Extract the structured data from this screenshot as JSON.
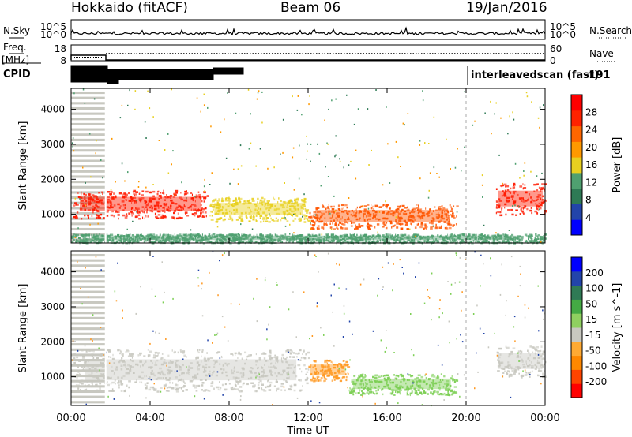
{
  "header": {
    "station": "Hokkaido (fitACF)",
    "beam": "Beam 06",
    "date": "19/Jan/2016"
  },
  "nsky_panel": {
    "left_label": "N.Sky",
    "left_ticks": [
      "10^5",
      "10^0"
    ],
    "right_label": "N.Search",
    "right_ticks": [
      "10^5",
      "10^0"
    ]
  },
  "freq_panel": {
    "left_label_1": "Freq.",
    "left_label_2": "[MHz]",
    "left_ticks": [
      "18",
      "8"
    ],
    "right_label": "Nave",
    "right_ticks": [
      "60",
      "0"
    ]
  },
  "cpid_panel": {
    "label": "CPID",
    "scan_mode": "interleavedscan (fast)",
    "cpid_value": "-191"
  },
  "chart_data": [
    {
      "type": "heatmap",
      "title": "",
      "quantity": "Power",
      "ylabel": "Slant Range [km]",
      "xlabel": "Time UT",
      "x_ticks": [
        "00:00",
        "04:00",
        "08:00",
        "12:00",
        "16:00",
        "20:00",
        "00:00"
      ],
      "x_range_hours": [
        0,
        24
      ],
      "y_ticks": [
        1000,
        2000,
        3000,
        4000
      ],
      "y_range_km": [
        180,
        4600
      ],
      "colorbar_label": "Power [dB]",
      "colorbar_ticks": [
        "28",
        "24",
        "20",
        "16",
        "12",
        "8",
        "4"
      ],
      "colorbar_range": [
        0,
        32
      ],
      "colors": [
        "#0000ff",
        "#2244aa",
        "#2e7a55",
        "#4fa070",
        "#e8d020",
        "#ff9900",
        "#ff6600",
        "#ff2200",
        "#ff0000"
      ],
      "features": [
        {
          "desc": "strong echo band",
          "t_start": 0.1,
          "t_end": 6.9,
          "r_low": 900,
          "r_high": 1700,
          "level": "28"
        },
        {
          "desc": "mid-latitude band",
          "t_start": 7.0,
          "t_end": 12.0,
          "r_low": 800,
          "r_high": 1500,
          "level": "16"
        },
        {
          "desc": "descending band",
          "t_start": 12.0,
          "t_end": 19.5,
          "r_low": 600,
          "r_high": 1300,
          "level": "24"
        },
        {
          "desc": "evening band",
          "t_start": 21.5,
          "t_end": 24.0,
          "r_low": 1000,
          "r_high": 1900,
          "level": "28"
        },
        {
          "desc": "near-range scatter",
          "t_start": 0.0,
          "t_end": 24.0,
          "r_low": 200,
          "r_high": 450,
          "level": "12"
        }
      ]
    },
    {
      "type": "heatmap",
      "title": "",
      "quantity": "Velocity",
      "ylabel": "Slant Range [km]",
      "xlabel": "Time UT",
      "x_ticks": [
        "00:00",
        "04:00",
        "08:00",
        "12:00",
        "16:00",
        "20:00",
        "00:00"
      ],
      "x_range_hours": [
        0,
        24
      ],
      "y_ticks": [
        1000,
        2000,
        3000,
        4000
      ],
      "y_range_km": [
        180,
        4600
      ],
      "colorbar_label": "Velocity [m s^-1]",
      "colorbar_ticks": [
        "200",
        "100",
        "50",
        "15",
        "-15",
        "-50",
        "-100",
        "-200"
      ],
      "colorbar_range": [
        -250,
        250
      ],
      "colors": [
        "#ff0000",
        "#ff4400",
        "#ff8800",
        "#ffaa33",
        "#c8c8c0",
        "#8fd060",
        "#44aa44",
        "#2f7a55",
        "#2244aa",
        "#0000ff"
      ],
      "features": [
        {
          "desc": "ground scatter band",
          "t_start": 0.1,
          "t_end": 12.0,
          "r_low": 600,
          "r_high": 1800,
          "level": "-15"
        },
        {
          "desc": "negative velocity patch",
          "t_start": 12.0,
          "t_end": 14.0,
          "r_low": 900,
          "r_high": 1500,
          "level": "-50"
        },
        {
          "desc": "positive velocity band",
          "t_start": 14.0,
          "t_end": 19.5,
          "r_low": 500,
          "r_high": 1100,
          "level": "50"
        },
        {
          "desc": "evening ground scatter",
          "t_start": 21.5,
          "t_end": 24.0,
          "r_low": 1000,
          "r_high": 1900,
          "level": "-15"
        }
      ]
    }
  ]
}
